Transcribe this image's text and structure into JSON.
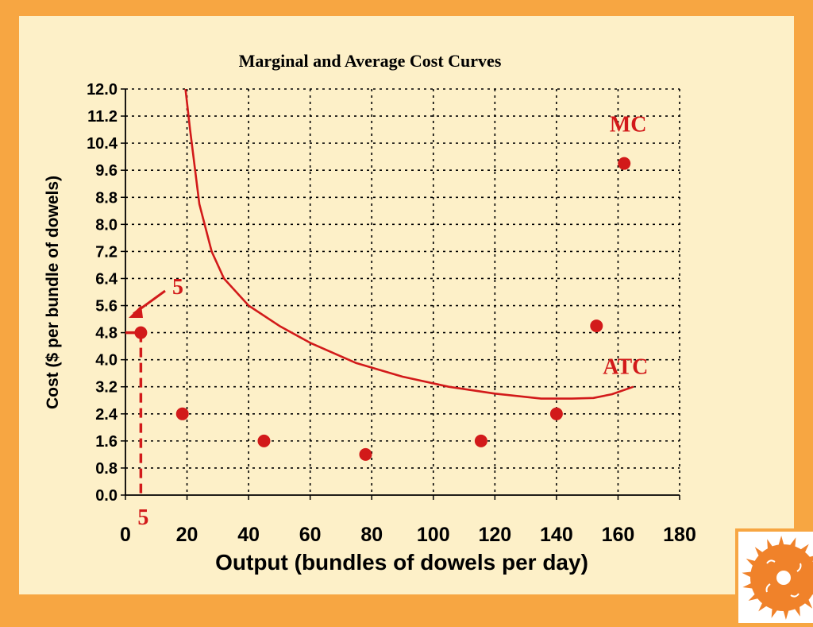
{
  "chart_data": {
    "type": "scatter",
    "title": "Marginal and Average Cost Curves",
    "xlabel": "Output (bundles of dowels per day)",
    "ylabel": "Cost ($ per bundle of dowels)",
    "xlim": [
      0,
      180
    ],
    "ylim": [
      0,
      12
    ],
    "x_ticks": [
      "0",
      "20",
      "40",
      "60",
      "80",
      "100",
      "120",
      "140",
      "160",
      "180"
    ],
    "y_ticks": [
      "12.0",
      "11.2",
      "10.4",
      "9.6",
      "8.8",
      "8.0",
      "7.2",
      "6.4",
      "5.6",
      "4.8",
      "4.0",
      "3.2",
      "2.4",
      "1.6",
      "0.8",
      "0.0"
    ],
    "grid": true,
    "series": [
      {
        "name": "MC",
        "type": "scatter",
        "color": "#d21a1a",
        "x": [
          5,
          18.5,
          45,
          78,
          115.5,
          140,
          153,
          162
        ],
        "y": [
          4.8,
          2.4,
          1.6,
          1.2,
          1.6,
          2.4,
          5.0,
          9.8
        ]
      },
      {
        "name": "ATC",
        "type": "line",
        "color": "#d21a1a",
        "x": [
          19.5,
          21,
          24,
          28,
          32,
          40,
          50,
          60,
          75,
          90,
          105,
          120,
          135,
          145,
          152,
          158,
          165
        ],
        "y": [
          12.0,
          10.8,
          8.6,
          7.2,
          6.4,
          5.6,
          5.0,
          4.5,
          3.9,
          3.5,
          3.2,
          3.0,
          2.85,
          2.85,
          2.87,
          2.98,
          3.2
        ]
      }
    ],
    "annotations": [
      {
        "text": "5",
        "role": "x-marker-label"
      },
      {
        "text": "5",
        "role": "y-marker-label"
      }
    ]
  }
}
